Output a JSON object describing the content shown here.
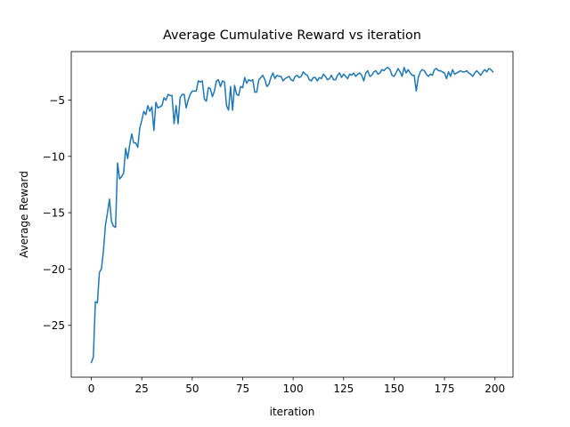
{
  "chart_data": {
    "type": "line",
    "title": "Average Cumulative Reward vs iteration",
    "x_label": "iteration",
    "y_label": "Average Reward",
    "color": "#1f77b4",
    "xlim": [
      -9.95,
      208.95
    ],
    "ylim": [
      -29.6,
      -0.7
    ],
    "xticks": [
      0,
      25,
      50,
      75,
      100,
      125,
      150,
      175,
      200
    ],
    "yticks": [
      {
        "value": -25,
        "label": "−25"
      },
      {
        "value": -20,
        "label": "−20"
      },
      {
        "value": -15,
        "label": "−15"
      },
      {
        "value": -10,
        "label": "−10"
      },
      {
        "value": -5,
        "label": "−5"
      }
    ],
    "x": [
      0,
      1,
      2,
      3,
      4,
      5,
      6,
      7,
      8,
      9,
      10,
      11,
      12,
      13,
      14,
      15,
      16,
      17,
      18,
      19,
      20,
      21,
      22,
      23,
      24,
      25,
      26,
      27,
      28,
      29,
      30,
      31,
      32,
      33,
      34,
      35,
      36,
      37,
      38,
      39,
      40,
      41,
      42,
      43,
      44,
      45,
      46,
      47,
      48,
      49,
      50,
      51,
      52,
      53,
      54,
      55,
      56,
      57,
      58,
      59,
      60,
      61,
      62,
      63,
      64,
      65,
      66,
      67,
      68,
      69,
      70,
      71,
      72,
      73,
      74,
      75,
      76,
      77,
      78,
      79,
      80,
      81,
      82,
      83,
      84,
      85,
      86,
      87,
      88,
      89,
      90,
      91,
      92,
      93,
      94,
      95,
      96,
      97,
      98,
      99,
      100,
      101,
      102,
      103,
      104,
      105,
      106,
      107,
      108,
      109,
      110,
      111,
      112,
      113,
      114,
      115,
      116,
      117,
      118,
      119,
      120,
      121,
      122,
      123,
      124,
      125,
      126,
      127,
      128,
      129,
      130,
      131,
      132,
      133,
      134,
      135,
      136,
      137,
      138,
      139,
      140,
      141,
      142,
      143,
      144,
      145,
      146,
      147,
      148,
      149,
      150,
      151,
      152,
      153,
      154,
      155,
      156,
      157,
      158,
      159,
      160,
      161,
      162,
      163,
      164,
      165,
      166,
      167,
      168,
      169,
      170,
      171,
      172,
      173,
      174,
      175,
      176,
      177,
      178,
      179,
      180,
      181,
      182,
      183,
      184,
      185,
      186,
      187,
      188,
      189,
      190,
      191,
      192,
      193,
      194,
      195,
      196,
      197,
      198,
      199
    ],
    "values": [
      -28.3,
      -27.8,
      -22.9,
      -23.0,
      -20.3,
      -20.0,
      -18.4,
      -16.1,
      -15.0,
      -13.8,
      -15.8,
      -16.2,
      -16.3,
      -10.6,
      -12.0,
      -11.8,
      -11.5,
      -9.3,
      -10.2,
      -9.0,
      -8.0,
      -8.8,
      -8.8,
      -9.2,
      -7.5,
      -6.8,
      -6.0,
      -6.3,
      -5.5,
      -6.0,
      -5.6,
      -7.7,
      -5.2,
      -5.7,
      -5.6,
      -5.5,
      -4.8,
      -5.0,
      -4.5,
      -4.6,
      -4.6,
      -7.1,
      -5.5,
      -7.1,
      -4.8,
      -4.5,
      -4.5,
      -5.7,
      -5.0,
      -4.5,
      -4.2,
      -4.2,
      -4.2,
      -3.3,
      -3.4,
      -3.3,
      -4.9,
      -5.1,
      -3.9,
      -4.0,
      -4.7,
      -4.2,
      -3.3,
      -3.2,
      -3.8,
      -3.3,
      -3.4,
      -5.5,
      -5.9,
      -3.8,
      -5.9,
      -3.7,
      -4.5,
      -4.6,
      -3.8,
      -3.9,
      -3.0,
      -3.5,
      -3.2,
      -3.3,
      -3.2,
      -4.3,
      -4.3,
      -3.2,
      -3.0,
      -2.8,
      -3.2,
      -3.8,
      -3.6,
      -3.0,
      -2.6,
      -3.1,
      -2.8,
      -2.9,
      -2.9,
      -3.3,
      -3.1,
      -3.0,
      -2.9,
      -3.2,
      -3.3,
      -2.9,
      -2.8,
      -3.0,
      -2.9,
      -2.5,
      -2.7,
      -2.8,
      -3.2,
      -3.3,
      -3.0,
      -3.0,
      -3.3,
      -3.0,
      -3.1,
      -2.7,
      -2.9,
      -3.2,
      -3.1,
      -2.8,
      -3.2,
      -3.2,
      -2.8,
      -2.6,
      -3.0,
      -2.7,
      -2.9,
      -3.1,
      -2.7,
      -2.8,
      -2.6,
      -2.9,
      -2.7,
      -2.6,
      -2.8,
      -3.3,
      -2.6,
      -2.4,
      -2.9,
      -2.8,
      -2.5,
      -2.4,
      -2.7,
      -2.6,
      -2.3,
      -2.4,
      -2.2,
      -2.1,
      -2.3,
      -2.8,
      -2.9,
      -2.6,
      -2.2,
      -2.5,
      -2.9,
      -2.1,
      -2.6,
      -2.3,
      -2.6,
      -2.8,
      -2.8,
      -4.2,
      -3.0,
      -2.5,
      -2.3,
      -2.4,
      -2.7,
      -2.9,
      -2.7,
      -2.8,
      -2.3,
      -2.2,
      -2.4,
      -2.4,
      -2.5,
      -2.6,
      -3.1,
      -2.5,
      -2.9,
      -2.3,
      -2.7,
      -2.6,
      -2.5,
      -2.4,
      -2.5,
      -2.5,
      -2.4,
      -2.6,
      -2.7,
      -2.9,
      -2.6,
      -2.4,
      -2.6,
      -2.8,
      -2.5,
      -2.3,
      -2.5,
      -2.2,
      -2.3,
      -2.5
    ]
  }
}
